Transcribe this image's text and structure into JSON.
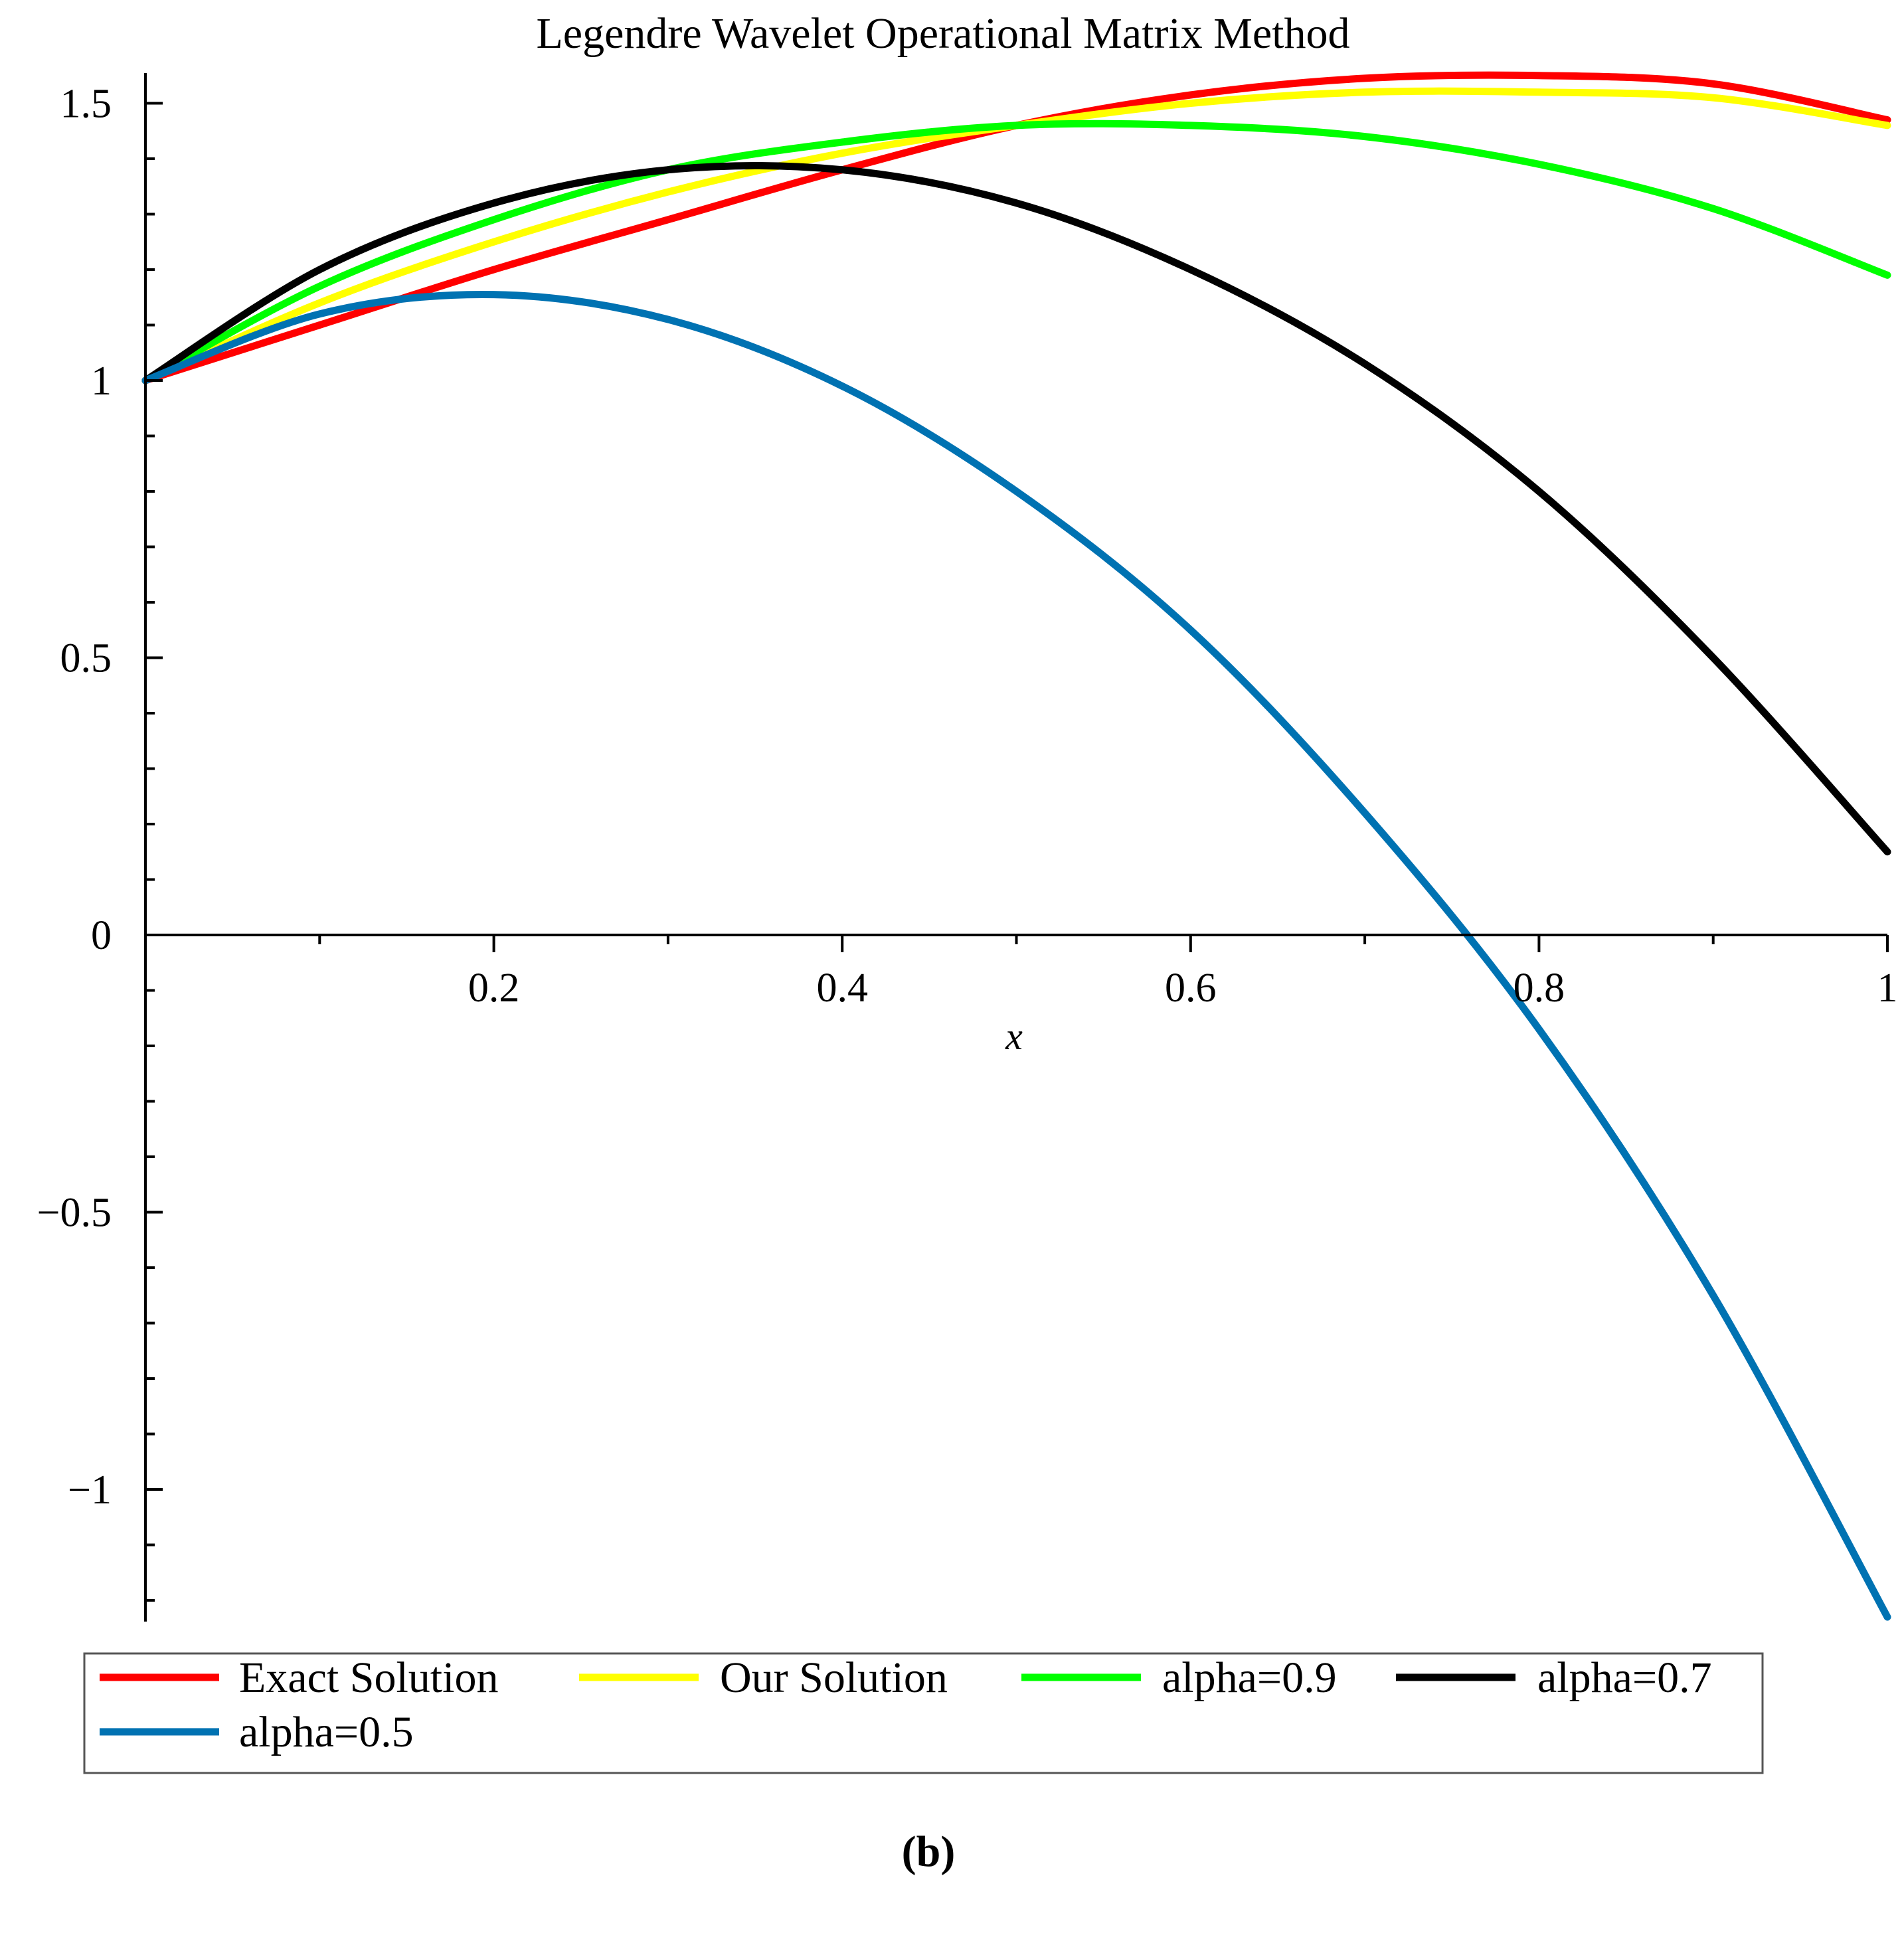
{
  "caption": "(b)",
  "colors": {
    "exact": "#ff0000",
    "ours": "#ffff00",
    "a09": "#00ff00",
    "a07": "#000000",
    "a05": "#0072b2",
    "axis": "#000000"
  },
  "chart_data": {
    "type": "line",
    "title": "Legendre Wavelet Operational Matrix Method",
    "xlabel": "x",
    "ylabel": "",
    "xlim": [
      0,
      1
    ],
    "ylim": [
      -1.23,
      1.6
    ],
    "x_ticks": [
      0.2,
      0.4,
      0.6,
      0.8,
      1
    ],
    "x_tick_labels": [
      "0.2",
      "0.4",
      "0.6",
      "0.8",
      "1"
    ],
    "y_ticks": [
      -1,
      -0.5,
      0,
      0.5,
      1,
      1.5
    ],
    "y_tick_labels": [
      "−1",
      "−0.5",
      "0",
      "0.5",
      "1",
      "1.5"
    ],
    "legend_position": "bottom",
    "x": [
      0,
      0.1,
      0.2,
      0.3,
      0.4,
      0.5,
      0.6,
      0.7,
      0.8,
      0.9,
      1.0
    ],
    "series": [
      {
        "name": "Exact Solution",
        "color_key": "exact",
        "values": [
          1.0,
          1.1,
          1.2,
          1.29,
          1.38,
          1.46,
          1.515,
          1.545,
          1.55,
          1.535,
          1.47
        ]
      },
      {
        "name": "Our Solution",
        "color_key": "ours",
        "values": [
          1.0,
          1.14,
          1.25,
          1.34,
          1.41,
          1.46,
          1.5,
          1.52,
          1.52,
          1.51,
          1.46
        ]
      },
      {
        "name": "alpha=0.9",
        "color_key": "a09",
        "values": [
          1.0,
          1.17,
          1.29,
          1.38,
          1.43,
          1.46,
          1.46,
          1.44,
          1.39,
          1.31,
          1.19
        ]
      },
      {
        "name": "alpha=0.7",
        "color_key": "a07",
        "values": [
          1.0,
          1.2,
          1.32,
          1.38,
          1.38,
          1.32,
          1.2,
          1.03,
          0.8,
          0.5,
          0.15
        ]
      },
      {
        "name": "alpha=0.5",
        "color_key": "a05",
        "values": [
          1.0,
          1.12,
          1.155,
          1.11,
          0.99,
          0.8,
          0.55,
          0.22,
          -0.17,
          -0.65,
          -1.23
        ]
      }
    ]
  }
}
